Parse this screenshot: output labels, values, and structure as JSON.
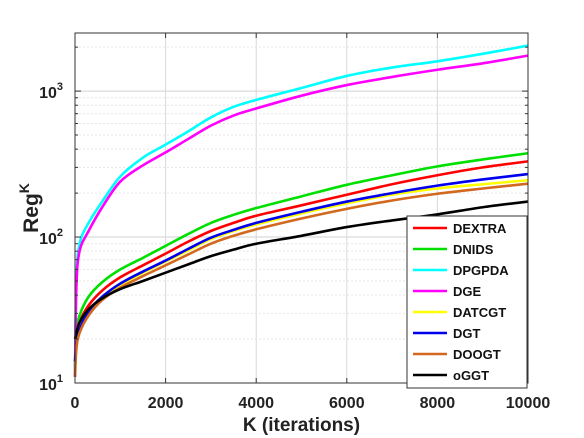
{
  "chart_data": {
    "type": "line",
    "xlabel": "K (iterations)",
    "ylabel": {
      "base": "Reg",
      "sup": "K"
    },
    "xlim": [
      0,
      10000
    ],
    "ylim": [
      10,
      2500
    ],
    "yscale": "log",
    "grid": true,
    "legend_position": "bottom-right",
    "xticks": [
      0,
      2000,
      4000,
      6000,
      8000,
      10000
    ],
    "xtick_labels": [
      "0",
      "2000",
      "4000",
      "6000",
      "8000",
      "10000"
    ],
    "yticks": [
      10,
      100,
      1000
    ],
    "ytick_labels": [
      {
        "base": "10",
        "exp": "1"
      },
      {
        "base": "10",
        "exp": "2"
      },
      {
        "base": "10",
        "exp": "3"
      }
    ],
    "x": [
      0,
      30,
      100,
      300,
      600,
      1000,
      1500,
      2000,
      2500,
      3000,
      3500,
      4000,
      5000,
      6000,
      7000,
      8000,
      9000,
      10000
    ],
    "series": [
      {
        "name": "DEXTRA",
        "color": "#ff0000",
        "values": [
          12,
          20,
          26,
          34,
          43,
          53,
          64,
          77,
          93,
          110,
          125,
          140,
          165,
          195,
          230,
          265,
          300,
          330
        ]
      },
      {
        "name": "DNIDS",
        "color": "#00e000",
        "values": [
          13,
          22,
          29,
          39,
          49,
          60,
          72,
          87,
          105,
          125,
          142,
          158,
          190,
          228,
          265,
          305,
          340,
          375
        ]
      },
      {
        "name": "DPGPDA",
        "color": "#00ffff",
        "values": [
          12,
          50,
          90,
          125,
          175,
          260,
          350,
          430,
          530,
          660,
          780,
          870,
          1050,
          1270,
          1450,
          1600,
          1800,
          2050
        ]
      },
      {
        "name": "DGE",
        "color": "#ff00ff",
        "values": [
          11,
          45,
          80,
          110,
          160,
          240,
          310,
          380,
          470,
          580,
          680,
          760,
          930,
          1100,
          1250,
          1400,
          1550,
          1750
        ]
      },
      {
        "name": "DATCGT",
        "color": "#ffff00",
        "values": [
          12,
          18,
          23,
          30,
          38,
          47,
          57,
          68,
          81,
          97,
          110,
          122,
          145,
          170,
          195,
          215,
          230,
          245
        ]
      },
      {
        "name": "DGT",
        "color": "#0000ee",
        "values": [
          14,
          18,
          23,
          31,
          39,
          48,
          58,
          69,
          83,
          99,
          112,
          125,
          149,
          175,
          200,
          225,
          248,
          270
        ]
      },
      {
        "name": "DOOGT",
        "color": "#d2691e",
        "values": [
          11,
          17,
          22,
          29,
          37,
          45,
          54,
          64,
          76,
          90,
          102,
          113,
          134,
          156,
          178,
          198,
          215,
          232
        ]
      },
      {
        "name": "oGGT",
        "color": "#000000",
        "values": [
          20,
          22,
          26,
          32,
          38,
          44,
          50,
          57,
          65,
          74,
          82,
          90,
          102,
          117,
          130,
          143,
          160,
          175
        ]
      }
    ]
  }
}
